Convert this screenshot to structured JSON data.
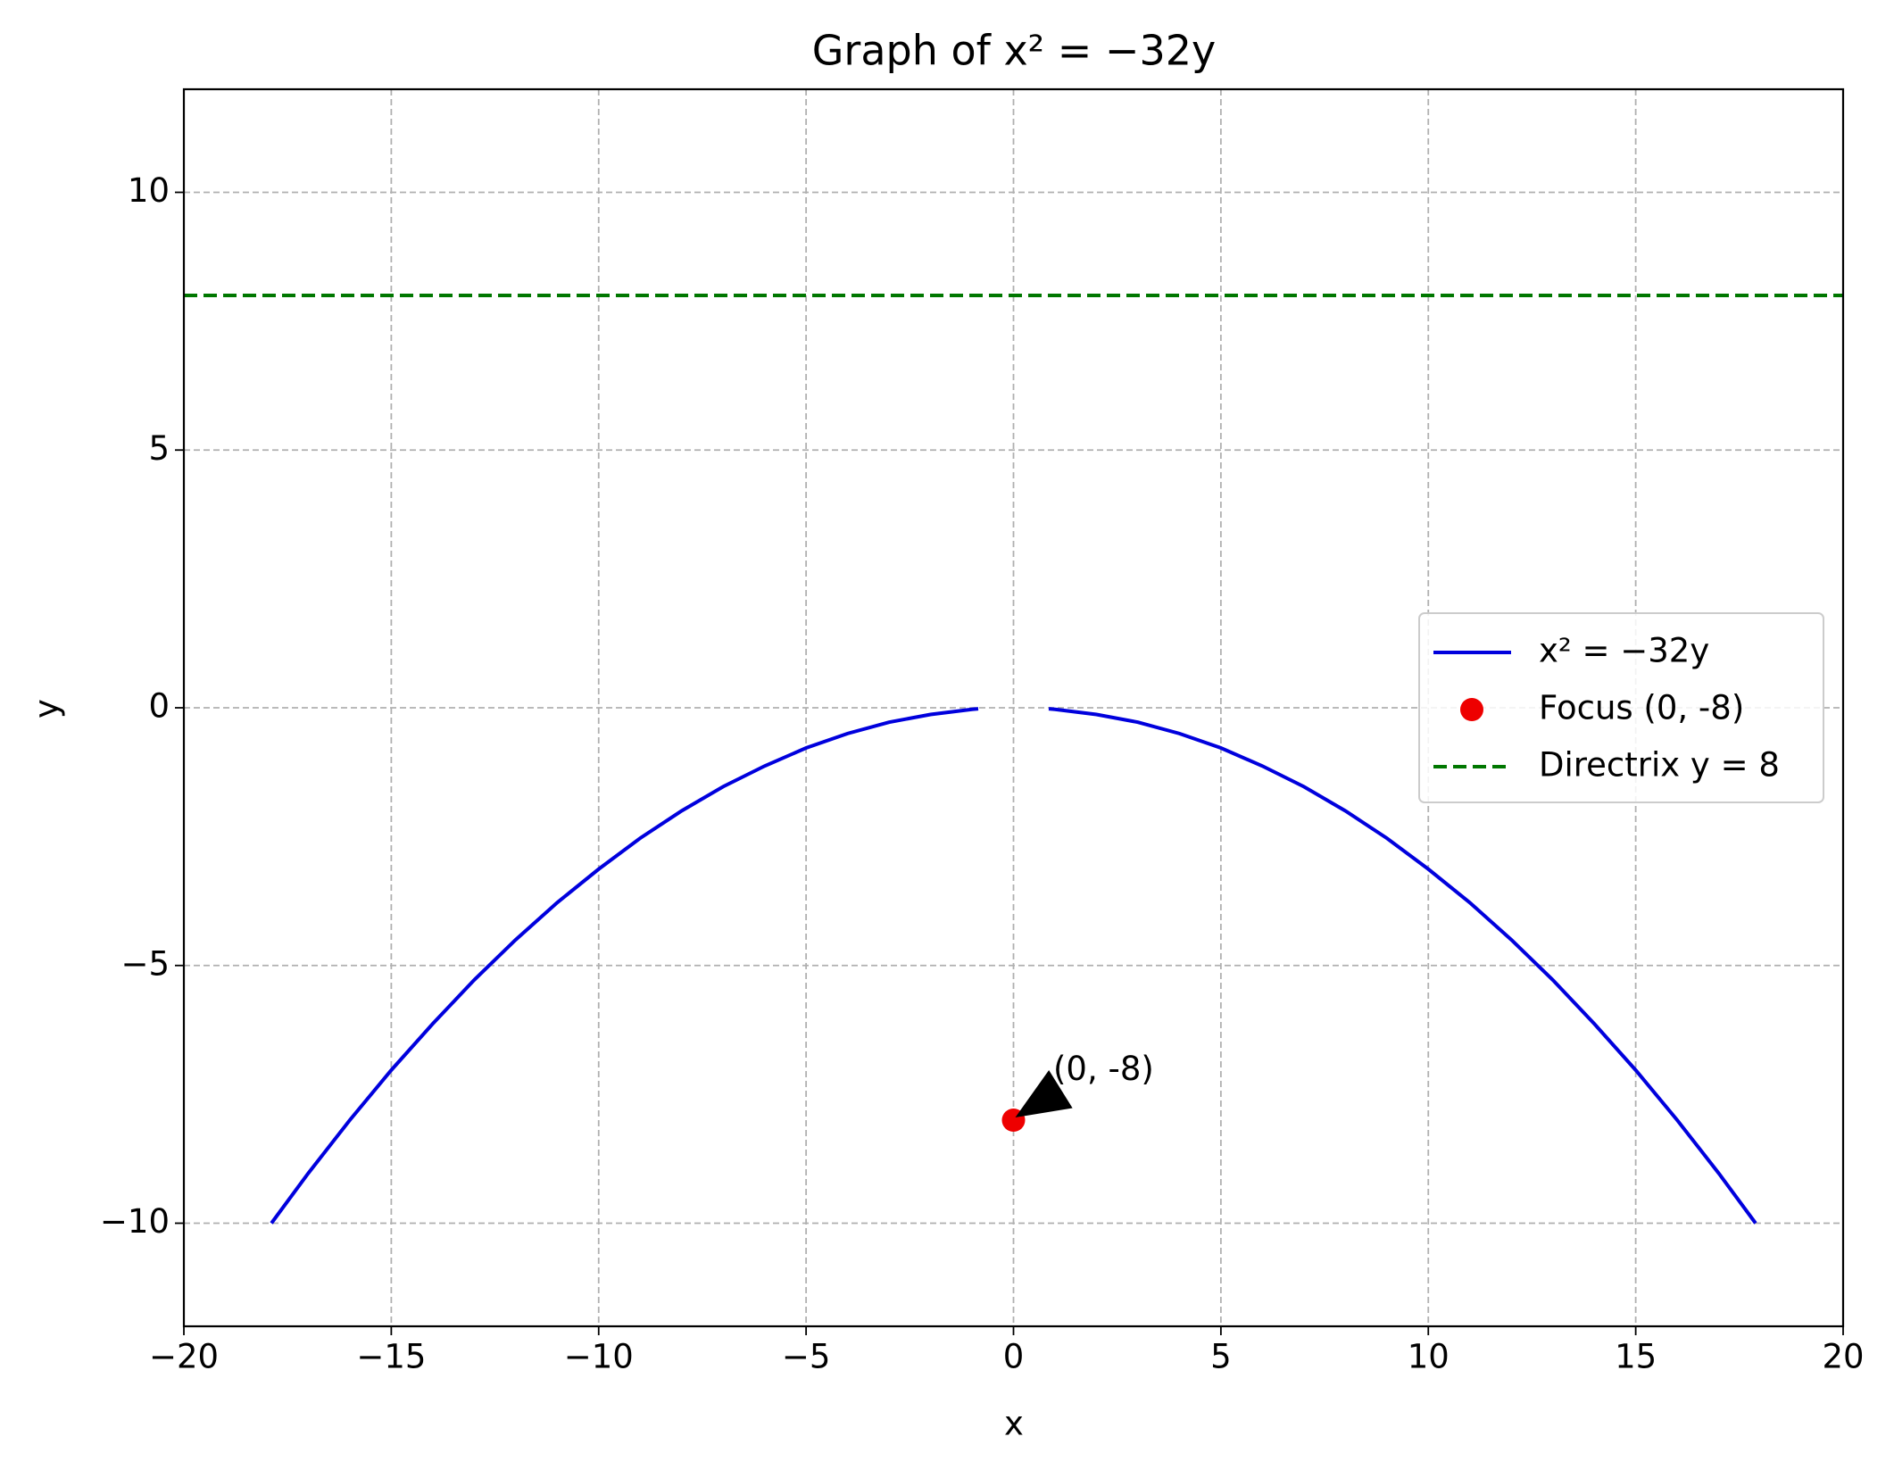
{
  "chart_data": {
    "type": "line",
    "title": "Graph of x² = −32y",
    "x_label": "x",
    "y_label": "y",
    "xlim": [
      -20,
      20
    ],
    "ylim": [
      -12,
      12
    ],
    "xticks": [
      {
        "value": -20,
        "label": "−20"
      },
      {
        "value": -15,
        "label": "−15"
      },
      {
        "value": -10,
        "label": "−10"
      },
      {
        "value": -5,
        "label": "−5"
      },
      0,
      5,
      10,
      15,
      20
    ],
    "yticks": [
      {
        "value": -10,
        "label": "−10"
      },
      {
        "value": -5,
        "label": "−5"
      },
      0,
      5,
      10
    ],
    "grid": true,
    "legend": "center right",
    "series": [
      {
        "name": "x² = −32y",
        "type": "line",
        "color": "#0000dd",
        "x": [
          -17.89,
          -17,
          -16,
          -15,
          -14,
          -13,
          -12,
          -11,
          -10,
          -9,
          -8,
          -7,
          -6,
          -5,
          -4,
          -3,
          -2,
          -1,
          -0.85,
          null,
          0.85,
          1,
          2,
          3,
          4,
          5,
          6,
          7,
          8,
          9,
          10,
          11,
          12,
          13,
          14,
          15,
          16,
          17,
          17.89
        ],
        "values": [
          -10,
          -9.03,
          -8,
          -7.03,
          -6.13,
          -5.28,
          -4.5,
          -3.78,
          -3.13,
          -2.53,
          -2,
          -1.53,
          -1.13,
          -0.78,
          -0.5,
          -0.28,
          -0.13,
          -0.03,
          -0.02,
          null,
          -0.02,
          -0.03,
          -0.13,
          -0.28,
          -0.5,
          -0.78,
          -1.13,
          -1.53,
          -2,
          -2.53,
          -3.13,
          -3.78,
          -4.5,
          -5.28,
          -6.13,
          -7.03,
          -8,
          -9.03,
          -10
        ]
      },
      {
        "name": "Focus (0, -8)",
        "type": "scatter",
        "color": "#ee0000",
        "x": [
          0
        ],
        "values": [
          -8
        ]
      },
      {
        "name": "Directrix y = 8",
        "type": "hline",
        "color": "#007700",
        "linestyle": "dashed",
        "values": [
          8
        ]
      }
    ],
    "annotations": [
      {
        "text": "(0, -8)",
        "xy": [
          0,
          -8
        ],
        "xytext": [
          1,
          -7
        ]
      }
    ]
  }
}
